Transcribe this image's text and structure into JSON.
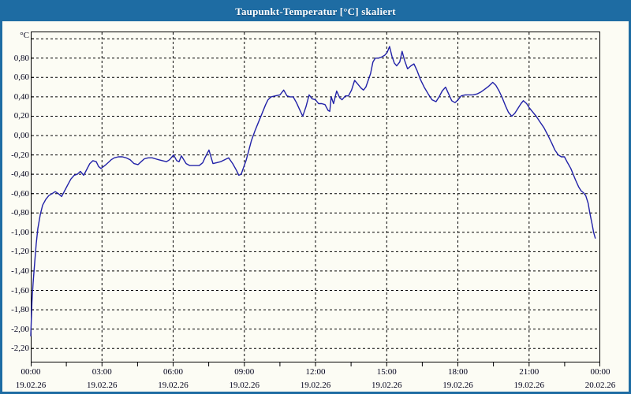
{
  "window": {
    "title": "Taupunkt-Temperatur [°C] skaliert",
    "colors": {
      "title_bar": "#1e6ca3",
      "border": "#1e6ca3",
      "background": "#fcfcf4",
      "grid": "#000000",
      "text": "#00001a",
      "line": "#2121a8"
    }
  },
  "chart_data": {
    "type": "line",
    "title": "Taupunkt-Temperatur [°C] skaliert",
    "xlabel": "",
    "ylabel": "°C",
    "xlim_hours": [
      0,
      24
    ],
    "ylim": [
      -2.345,
      1.075
    ],
    "grid": true,
    "legend": null,
    "x_minor_tick_step_hours": 1.5,
    "y_major_ticks": [
      {
        "value": 1.0,
        "label": ""
      },
      {
        "value": 0.8,
        "label": "0,80"
      },
      {
        "value": 0.6,
        "label": "0,60"
      },
      {
        "value": 0.4,
        "label": "0,40"
      },
      {
        "value": 0.2,
        "label": "0,20"
      },
      {
        "value": 0.0,
        "label": "0,00"
      },
      {
        "value": -0.2,
        "label": "-0,20"
      },
      {
        "value": -0.4,
        "label": "-0,40"
      },
      {
        "value": -0.6,
        "label": "-0,60"
      },
      {
        "value": -0.8,
        "label": "-0,80"
      },
      {
        "value": -1.0,
        "label": "-1,00"
      },
      {
        "value": -1.2,
        "label": "-1,20"
      },
      {
        "value": -1.4,
        "label": "-1,40"
      },
      {
        "value": -1.6,
        "label": "-1,60"
      },
      {
        "value": -1.8,
        "label": "-1,80"
      },
      {
        "value": -2.0,
        "label": "-2,00"
      },
      {
        "value": -2.2,
        "label": "-2,20"
      }
    ],
    "x_major_ticks": [
      {
        "hour": 0,
        "time": "00:00",
        "date": "19.02.26"
      },
      {
        "hour": 3,
        "time": "03:00",
        "date": "19.02.26"
      },
      {
        "hour": 6,
        "time": "06:00",
        "date": "19.02.26"
      },
      {
        "hour": 9,
        "time": "09:00",
        "date": "19.02.26"
      },
      {
        "hour": 12,
        "time": "12:00",
        "date": "19.02.26"
      },
      {
        "hour": 15,
        "time": "15:00",
        "date": "19.02.26"
      },
      {
        "hour": 18,
        "time": "18:00",
        "date": "19.02.26"
      },
      {
        "hour": 21,
        "time": "21:00",
        "date": "19.02.26"
      },
      {
        "hour": 24,
        "time": "00:00",
        "date": "20.02.26"
      }
    ],
    "series": [
      {
        "name": "Taupunkt-Temperatur",
        "color": "#2121a8",
        "points": [
          [
            0.0,
            -2.07
          ],
          [
            0.05,
            -1.72
          ],
          [
            0.1,
            -1.52
          ],
          [
            0.17,
            -1.3
          ],
          [
            0.23,
            -1.12
          ],
          [
            0.3,
            -0.96
          ],
          [
            0.4,
            -0.82
          ],
          [
            0.5,
            -0.72
          ],
          [
            0.63,
            -0.66
          ],
          [
            0.76,
            -0.62
          ],
          [
            0.9,
            -0.6
          ],
          [
            1.03,
            -0.58
          ],
          [
            1.16,
            -0.6
          ],
          [
            1.3,
            -0.63
          ],
          [
            1.43,
            -0.57
          ],
          [
            1.56,
            -0.51
          ],
          [
            1.69,
            -0.45
          ],
          [
            1.83,
            -0.41
          ],
          [
            1.96,
            -0.4
          ],
          [
            2.09,
            -0.37
          ],
          [
            2.23,
            -0.41
          ],
          [
            2.36,
            -0.35
          ],
          [
            2.49,
            -0.29
          ],
          [
            2.62,
            -0.26
          ],
          [
            2.76,
            -0.27
          ],
          [
            2.86,
            -0.32
          ],
          [
            2.96,
            -0.34
          ],
          [
            3.12,
            -0.31
          ],
          [
            3.26,
            -0.28
          ],
          [
            3.39,
            -0.25
          ],
          [
            3.52,
            -0.23
          ],
          [
            3.69,
            -0.22
          ],
          [
            3.86,
            -0.22
          ],
          [
            4.02,
            -0.23
          ],
          [
            4.19,
            -0.25
          ],
          [
            4.35,
            -0.29
          ],
          [
            4.52,
            -0.3
          ],
          [
            4.65,
            -0.27
          ],
          [
            4.79,
            -0.24
          ],
          [
            4.95,
            -0.23
          ],
          [
            5.12,
            -0.23
          ],
          [
            5.25,
            -0.24
          ],
          [
            5.39,
            -0.25
          ],
          [
            5.55,
            -0.26
          ],
          [
            5.72,
            -0.27
          ],
          [
            5.85,
            -0.25
          ],
          [
            6.02,
            -0.2
          ],
          [
            6.15,
            -0.26
          ],
          [
            6.25,
            -0.27
          ],
          [
            6.35,
            -0.21
          ],
          [
            6.45,
            -0.25
          ],
          [
            6.55,
            -0.29
          ],
          [
            6.7,
            -0.31
          ],
          [
            6.9,
            -0.31
          ],
          [
            7.1,
            -0.31
          ],
          [
            7.25,
            -0.28
          ],
          [
            7.34,
            -0.23
          ],
          [
            7.51,
            -0.15
          ],
          [
            7.68,
            -0.29
          ],
          [
            7.84,
            -0.28
          ],
          [
            8.0,
            -0.27
          ],
          [
            8.17,
            -0.25
          ],
          [
            8.34,
            -0.23
          ],
          [
            8.51,
            -0.29
          ],
          [
            8.67,
            -0.36
          ],
          [
            8.77,
            -0.41
          ],
          [
            8.87,
            -0.4
          ],
          [
            8.97,
            -0.33
          ],
          [
            9.07,
            -0.26
          ],
          [
            9.17,
            -0.17
          ],
          [
            9.3,
            -0.05
          ],
          [
            9.45,
            0.05
          ],
          [
            9.6,
            0.14
          ],
          [
            9.75,
            0.23
          ],
          [
            9.9,
            0.32
          ],
          [
            10.0,
            0.37
          ],
          [
            10.13,
            0.4
          ],
          [
            10.3,
            0.41
          ],
          [
            10.5,
            0.42
          ],
          [
            10.66,
            0.47
          ],
          [
            10.8,
            0.41
          ],
          [
            10.93,
            0.4
          ],
          [
            11.06,
            0.4
          ],
          [
            11.2,
            0.34
          ],
          [
            11.33,
            0.27
          ],
          [
            11.46,
            0.2
          ],
          [
            11.6,
            0.3
          ],
          [
            11.73,
            0.42
          ],
          [
            11.86,
            0.38
          ],
          [
            12.0,
            0.37
          ],
          [
            12.13,
            0.33
          ],
          [
            12.26,
            0.33
          ],
          [
            12.4,
            0.32
          ],
          [
            12.53,
            0.26
          ],
          [
            12.6,
            0.25
          ],
          [
            12.66,
            0.4
          ],
          [
            12.76,
            0.33
          ],
          [
            12.89,
            0.46
          ],
          [
            13.02,
            0.39
          ],
          [
            13.12,
            0.37
          ],
          [
            13.26,
            0.41
          ],
          [
            13.39,
            0.41
          ],
          [
            13.52,
            0.47
          ],
          [
            13.65,
            0.57
          ],
          [
            13.79,
            0.53
          ],
          [
            13.92,
            0.49
          ],
          [
            14.02,
            0.47
          ],
          [
            14.12,
            0.5
          ],
          [
            14.22,
            0.57
          ],
          [
            14.32,
            0.64
          ],
          [
            14.42,
            0.76
          ],
          [
            14.52,
            0.8
          ],
          [
            14.65,
            0.8
          ],
          [
            14.78,
            0.81
          ],
          [
            14.92,
            0.83
          ],
          [
            15.02,
            0.86
          ],
          [
            15.12,
            0.92
          ],
          [
            15.22,
            0.82
          ],
          [
            15.32,
            0.75
          ],
          [
            15.42,
            0.72
          ],
          [
            15.55,
            0.76
          ],
          [
            15.65,
            0.87
          ],
          [
            15.75,
            0.78
          ],
          [
            15.88,
            0.69
          ],
          [
            16.02,
            0.72
          ],
          [
            16.15,
            0.74
          ],
          [
            16.28,
            0.67
          ],
          [
            16.42,
            0.58
          ],
          [
            16.58,
            0.5
          ],
          [
            16.75,
            0.43
          ],
          [
            16.91,
            0.37
          ],
          [
            17.08,
            0.35
          ],
          [
            17.21,
            0.4
          ],
          [
            17.34,
            0.46
          ],
          [
            17.48,
            0.5
          ],
          [
            17.61,
            0.43
          ],
          [
            17.74,
            0.36
          ],
          [
            17.88,
            0.34
          ],
          [
            18.01,
            0.37
          ],
          [
            18.14,
            0.41
          ],
          [
            18.31,
            0.42
          ],
          [
            18.47,
            0.42
          ],
          [
            18.64,
            0.42
          ],
          [
            18.81,
            0.43
          ],
          [
            18.97,
            0.45
          ],
          [
            19.14,
            0.48
          ],
          [
            19.3,
            0.51
          ],
          [
            19.47,
            0.55
          ],
          [
            19.6,
            0.52
          ],
          [
            19.74,
            0.46
          ],
          [
            19.87,
            0.39
          ],
          [
            20.0,
            0.31
          ],
          [
            20.13,
            0.24
          ],
          [
            20.27,
            0.2
          ],
          [
            20.4,
            0.23
          ],
          [
            20.53,
            0.28
          ],
          [
            20.66,
            0.33
          ],
          [
            20.76,
            0.36
          ],
          [
            20.9,
            0.33
          ],
          [
            21.0,
            0.29
          ],
          [
            21.13,
            0.25
          ],
          [
            21.3,
            0.2
          ],
          [
            21.46,
            0.14
          ],
          [
            21.63,
            0.08
          ],
          [
            21.8,
            0.0
          ],
          [
            21.96,
            -0.08
          ],
          [
            22.09,
            -0.15
          ],
          [
            22.23,
            -0.2
          ],
          [
            22.36,
            -0.22
          ],
          [
            22.49,
            -0.22
          ],
          [
            22.62,
            -0.28
          ],
          [
            22.76,
            -0.34
          ],
          [
            22.86,
            -0.4
          ],
          [
            22.96,
            -0.46
          ],
          [
            23.09,
            -0.53
          ],
          [
            23.19,
            -0.57
          ],
          [
            23.29,
            -0.59
          ],
          [
            23.39,
            -0.62
          ],
          [
            23.49,
            -0.7
          ],
          [
            23.56,
            -0.8
          ],
          [
            23.66,
            -0.92
          ],
          [
            23.72,
            -1.0
          ],
          [
            23.79,
            -1.06
          ]
        ]
      }
    ]
  }
}
